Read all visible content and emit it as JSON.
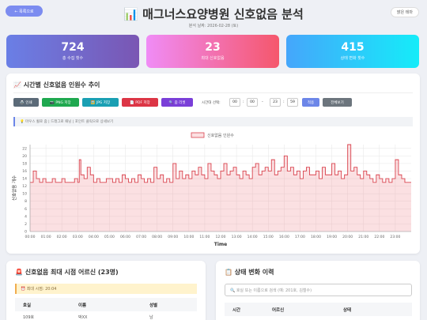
{
  "header": {
    "back_label": "← 목록으로",
    "title": "매그너스요양병원 신호없음 분석",
    "title_icon": "chart-icon",
    "date_label": "분석 날짜: 2026-02-28 (토)",
    "theme_label": "밝은 테마"
  },
  "stats": [
    {
      "value": "724",
      "label": "총 수집 횟수"
    },
    {
      "value": "23",
      "label": "최대 신호없음"
    },
    {
      "value": "415",
      "label": "상태 변화 횟수"
    }
  ],
  "chart_panel": {
    "title": "📈 시간별 신호없음 인원수 추이",
    "buttons": [
      "🖨️ 인쇄",
      "📷 PNG 저장",
      "🖼️ JPG 저장",
      "📄 PDF 저장",
      "🔍 줌 리셋"
    ],
    "time_range_label": "시간대 선택:",
    "start_h": "00",
    "start_m": "00",
    "end_h": "23",
    "end_m": "59",
    "apply_label": "적용",
    "all_label": "전체보기",
    "hint": "💡 마우스 휠로 줌 | 드래그로 패닝 | 포인트 클릭으로 상세보기"
  },
  "chart_data": {
    "type": "line",
    "legend": "신호없음 인원수",
    "xlabel": "Time",
    "ylabel": "신호없음 개수",
    "ylim": [
      0,
      23
    ],
    "yticks": [
      0,
      2,
      4,
      6,
      8,
      10,
      12,
      14,
      16,
      18,
      20,
      22
    ],
    "xticks": [
      "00:00",
      "01:00",
      "02:00",
      "03:00",
      "04:00",
      "05:00",
      "06:00",
      "07:00",
      "08:00",
      "09:00",
      "10:00",
      "11:00",
      "12:00",
      "13:00",
      "14:00",
      "15:00",
      "16:00",
      "17:00",
      "18:00",
      "19:00",
      "20:00",
      "21:00",
      "22:00",
      "23:00"
    ],
    "x_hours": [
      0,
      0.2,
      0.4,
      0.6,
      0.8,
      1.0,
      1.2,
      1.4,
      1.6,
      1.8,
      2.0,
      2.2,
      2.4,
      2.6,
      2.8,
      3.0,
      3.1,
      3.2,
      3.4,
      3.6,
      3.8,
      4.0,
      4.2,
      4.4,
      4.6,
      4.8,
      5.0,
      5.2,
      5.4,
      5.6,
      5.8,
      6.0,
      6.2,
      6.4,
      6.6,
      6.8,
      7.0,
      7.2,
      7.4,
      7.6,
      7.8,
      8.0,
      8.2,
      8.4,
      8.6,
      8.8,
      9.0,
      9.2,
      9.4,
      9.6,
      9.8,
      10.0,
      10.2,
      10.4,
      10.6,
      10.8,
      11.0,
      11.2,
      11.4,
      11.6,
      11.8,
      12.0,
      12.2,
      12.4,
      12.6,
      12.8,
      13.0,
      13.2,
      13.4,
      13.6,
      13.8,
      14.0,
      14.2,
      14.4,
      14.6,
      14.8,
      15.0,
      15.2,
      15.4,
      15.6,
      15.8,
      16.0,
      16.2,
      16.4,
      16.6,
      16.8,
      17.0,
      17.2,
      17.4,
      17.6,
      17.8,
      18.0,
      18.2,
      18.4,
      18.6,
      18.8,
      19.0,
      19.2,
      19.4,
      19.6,
      19.8,
      20.0,
      20.2,
      20.4,
      20.6,
      20.8,
      21.0,
      21.2,
      21.4,
      21.6,
      21.8,
      22.0,
      22.2,
      22.4,
      22.6,
      22.8,
      23.0,
      23.2,
      23.4,
      23.6,
      23.8,
      24.0
    ],
    "values": [
      13,
      16,
      14,
      13,
      14,
      13,
      13,
      14,
      13,
      13,
      14,
      13,
      13,
      13,
      14,
      13,
      19,
      15,
      14,
      17,
      15,
      13,
      14,
      13,
      13,
      14,
      14,
      13,
      14,
      13,
      15,
      14,
      13,
      14,
      13,
      15,
      14,
      13,
      14,
      13,
      17,
      14,
      15,
      13,
      14,
      13,
      18,
      14,
      16,
      14,
      15,
      14,
      16,
      15,
      17,
      15,
      14,
      18,
      16,
      15,
      14,
      16,
      18,
      15,
      16,
      17,
      15,
      14,
      16,
      15,
      14,
      17,
      18,
      15,
      16,
      17,
      16,
      19,
      15,
      16,
      17,
      20,
      16,
      17,
      15,
      16,
      14,
      16,
      17,
      15,
      15,
      16,
      14,
      17,
      15,
      15,
      18,
      15,
      16,
      14,
      15,
      23,
      16,
      17,
      15,
      14,
      16,
      15,
      14,
      13,
      15,
      14,
      13,
      14,
      13,
      14,
      19,
      15,
      14,
      13,
      13,
      13
    ]
  },
  "left_panel": {
    "title": "🚨 신호없음 최대 시점 어르신 (23명)",
    "alert": "⏰ 최대 시점: 20:04",
    "headers": [
      "호실",
      "이름",
      "성별"
    ],
    "rows": [
      [
        "109호",
        "박XX",
        "남"
      ]
    ]
  },
  "right_panel": {
    "title": "📋 상태 변화 이력",
    "search_placeholder": "🔍 호실 또는 이름으로 검색 (예: 201호, 김철수)",
    "headers": [
      "시간",
      "어르신",
      "상태"
    ]
  },
  "colors": {
    "line": "#d9434e",
    "fill": "rgba(240,130,140,0.25)"
  }
}
